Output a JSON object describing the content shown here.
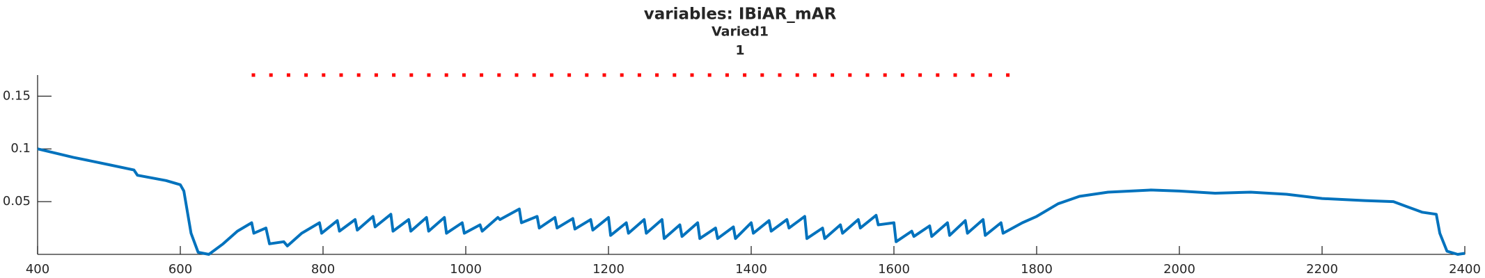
{
  "chart_data": {
    "type": "line",
    "title": [
      "variables: IBiAR_mAR",
      "Varied1",
      "1"
    ],
    "xlim": [
      400,
      2400
    ],
    "xticks": [
      400,
      600,
      800,
      1000,
      1200,
      1400,
      1600,
      1800,
      2000,
      2200,
      2400
    ],
    "ylim": [
      0,
      0.17
    ],
    "yticks": [
      0.05,
      0.1,
      0.15
    ],
    "series": [
      {
        "color": "#0072bd",
        "linestyle": "solid",
        "x": [
          400,
          450,
          500,
          535,
          540,
          580,
          600,
          605,
          615,
          625,
          640,
          660,
          680,
          700,
          703,
          720,
          725,
          745,
          750,
          770,
          795,
          798,
          820,
          823,
          845,
          848,
          870,
          873,
          895,
          898,
          920,
          923,
          945,
          948,
          970,
          973,
          995,
          998,
          1020,
          1023,
          1045,
          1048,
          1075,
          1078,
          1100,
          1103,
          1125,
          1128,
          1150,
          1153,
          1175,
          1178,
          1200,
          1203,
          1225,
          1228,
          1250,
          1253,
          1275,
          1278,
          1300,
          1303,
          1325,
          1328,
          1350,
          1353,
          1375,
          1378,
          1400,
          1403,
          1425,
          1428,
          1450,
          1453,
          1475,
          1478,
          1500,
          1503,
          1525,
          1528,
          1550,
          1553,
          1575,
          1578,
          1600,
          1603,
          1625,
          1628,
          1650,
          1653,
          1675,
          1678,
          1700,
          1703,
          1725,
          1728,
          1750,
          1753,
          1780,
          1800,
          1830,
          1860,
          1900,
          1960,
          2000,
          2050,
          2100,
          2150,
          2200,
          2260,
          2300,
          2320,
          2340,
          2360,
          2365,
          2375,
          2390,
          2400
        ],
        "values": [
          0.1,
          0.092,
          0.085,
          0.08,
          0.075,
          0.07,
          0.066,
          0.06,
          0.02,
          0.002,
          0,
          0.01,
          0.022,
          0.03,
          0.02,
          0.025,
          0.01,
          0.012,
          0.008,
          0.02,
          0.03,
          0.02,
          0.032,
          0.022,
          0.033,
          0.023,
          0.036,
          0.026,
          0.038,
          0.022,
          0.033,
          0.022,
          0.035,
          0.022,
          0.035,
          0.02,
          0.03,
          0.02,
          0.028,
          0.022,
          0.035,
          0.033,
          0.043,
          0.03,
          0.036,
          0.025,
          0.035,
          0.025,
          0.034,
          0.024,
          0.033,
          0.023,
          0.035,
          0.018,
          0.03,
          0.02,
          0.033,
          0.02,
          0.033,
          0.015,
          0.028,
          0.017,
          0.03,
          0.015,
          0.025,
          0.015,
          0.026,
          0.015,
          0.03,
          0.02,
          0.032,
          0.022,
          0.033,
          0.025,
          0.036,
          0.015,
          0.025,
          0.015,
          0.028,
          0.02,
          0.033,
          0.025,
          0.037,
          0.028,
          0.03,
          0.012,
          0.022,
          0.017,
          0.027,
          0.017,
          0.03,
          0.018,
          0.032,
          0.02,
          0.033,
          0.018,
          0.03,
          0.02,
          0.03,
          0.036,
          0.048,
          0.055,
          0.059,
          0.061,
          0.06,
          0.058,
          0.059,
          0.057,
          0.053,
          0.051,
          0.05,
          0.045,
          0.04,
          0.038,
          0.02,
          0.003,
          0,
          0.001
        ]
      },
      {
        "color": "#ff0000",
        "linestyle": "dotted",
        "x": [
          700,
          1780
        ],
        "values": [
          0.17,
          0.17
        ]
      }
    ]
  }
}
